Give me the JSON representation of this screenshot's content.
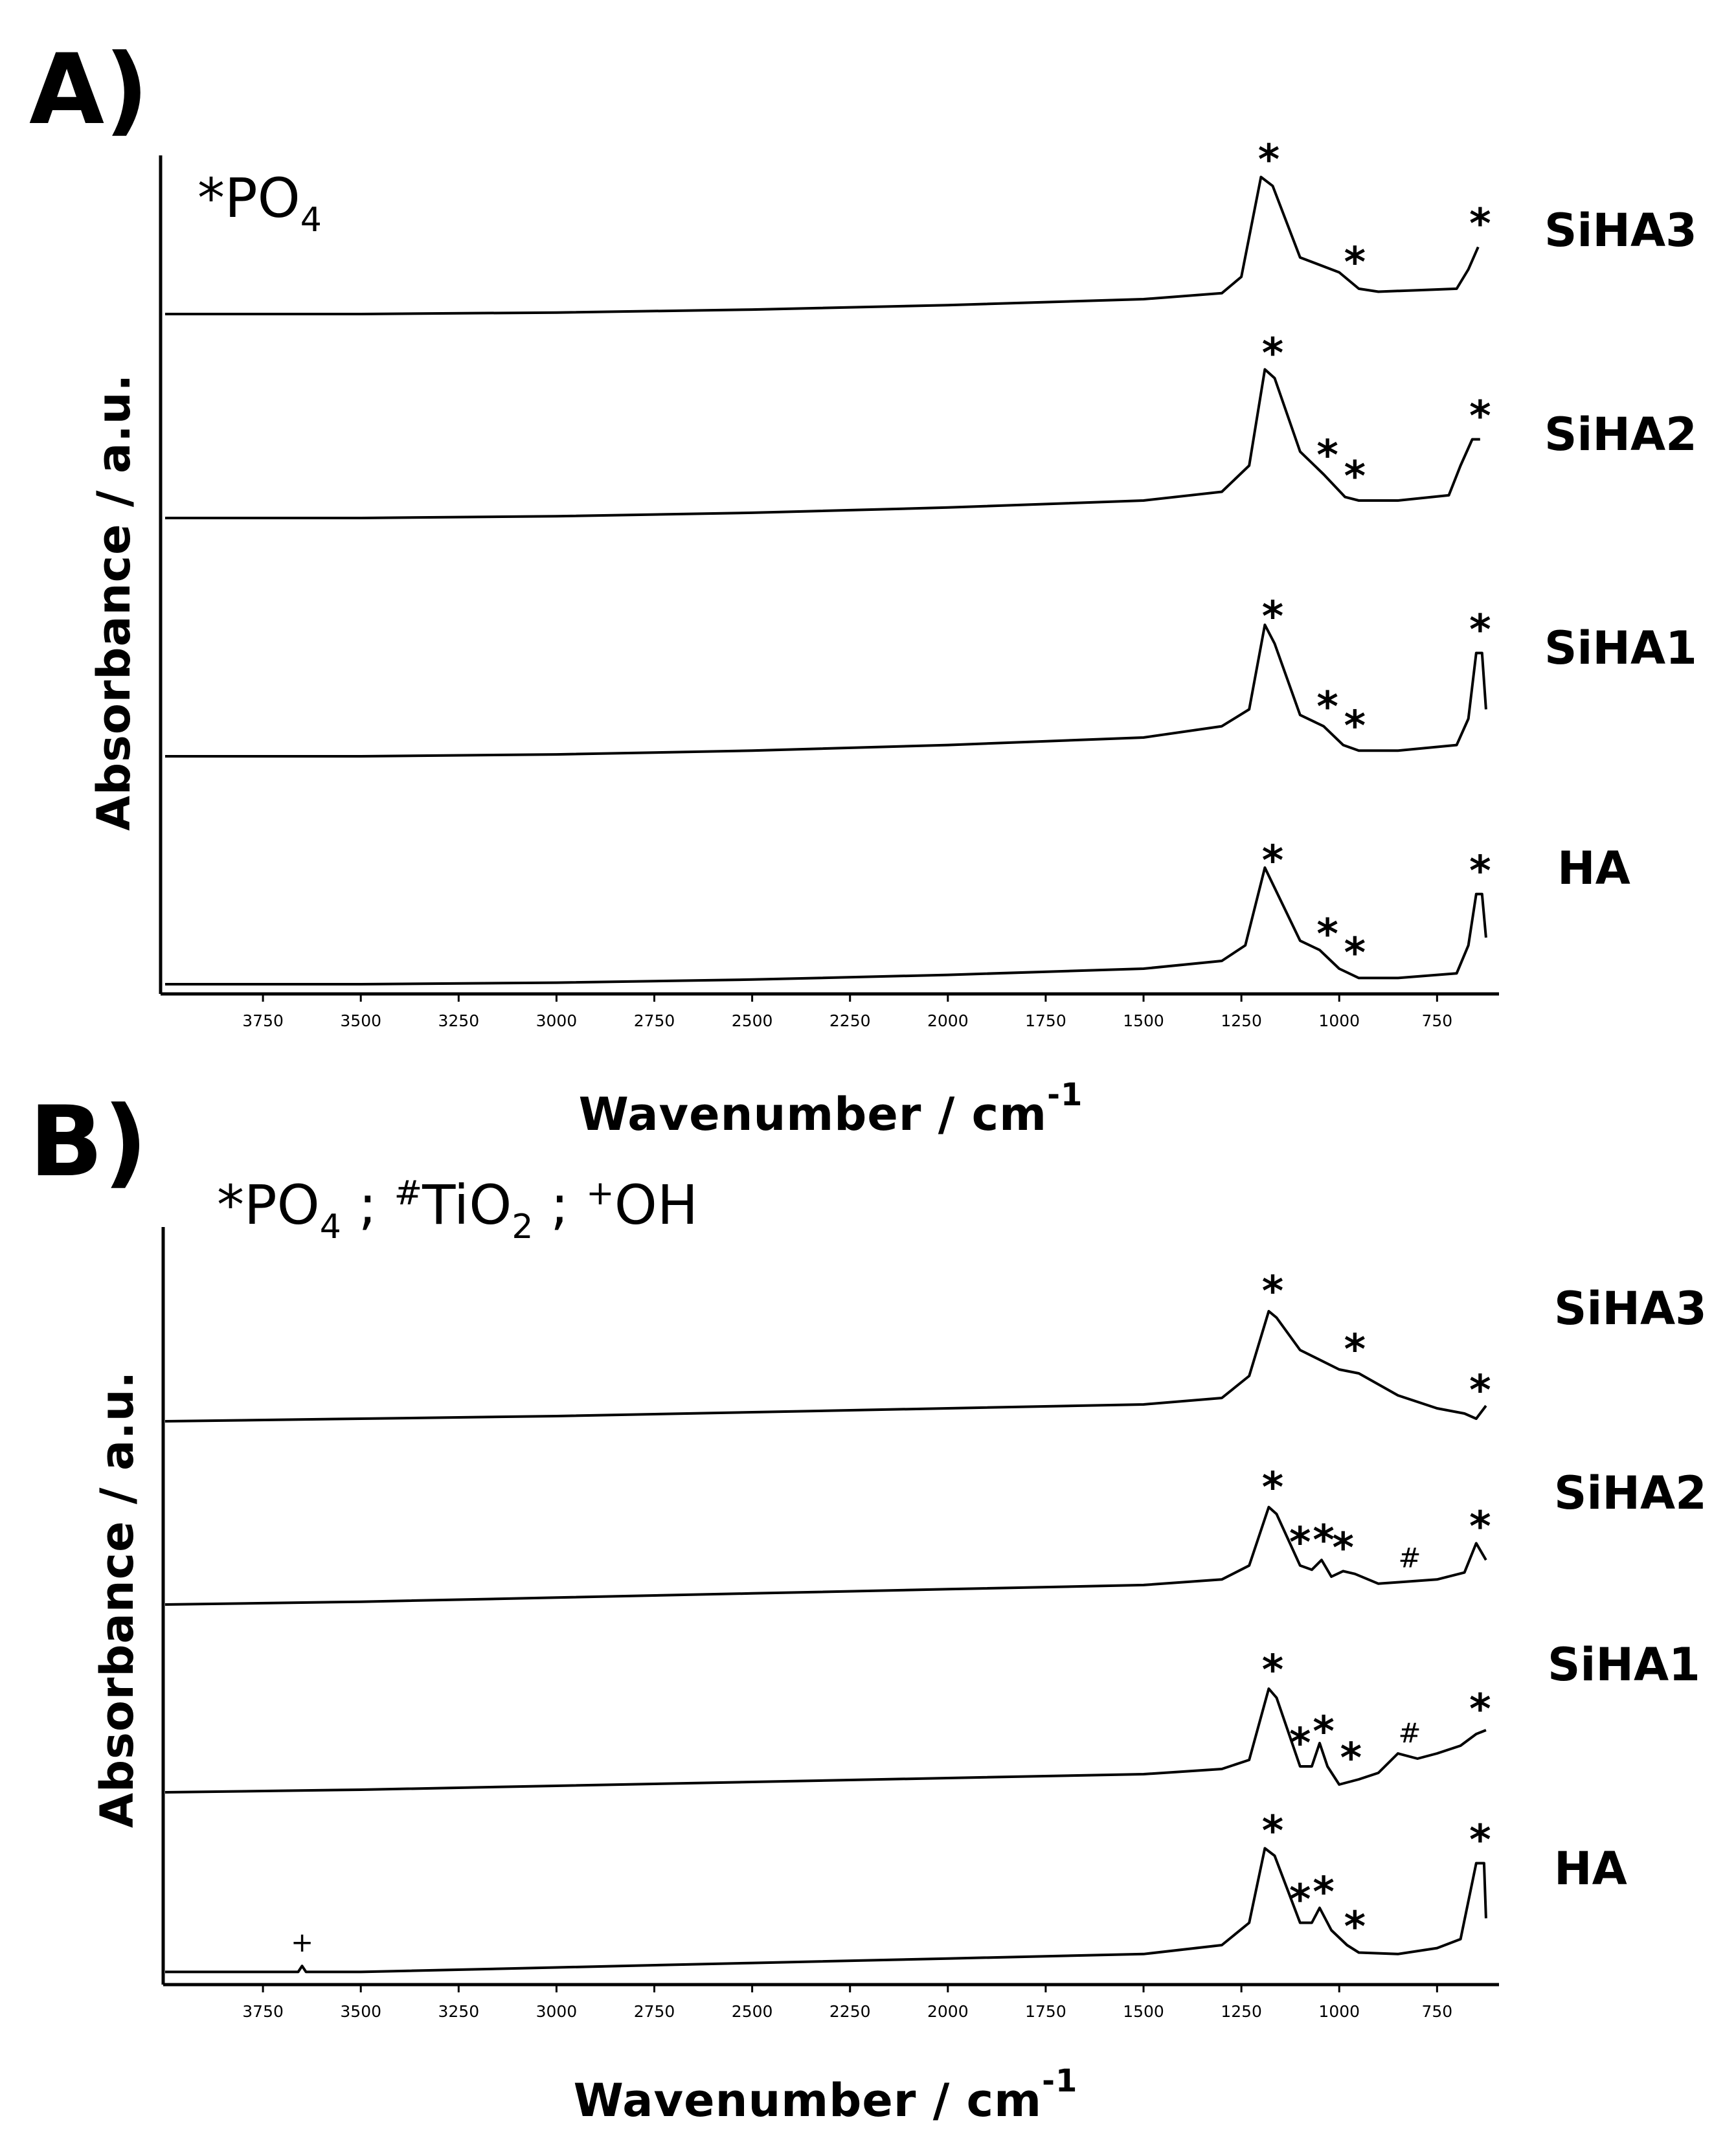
{
  "chart_data": [
    {
      "panel": "A)",
      "type": "line",
      "legend": {
        "prefix": "*",
        "species": "PO",
        "sub": "4"
      },
      "xlabel": "Wavenumber / cm",
      "xlabel_sup": "-1",
      "ylabel": "Absorbance / a.u.",
      "xlim": [
        4000,
        600
      ],
      "x_ticks": [
        3750,
        3500,
        3250,
        3000,
        2750,
        2500,
        2250,
        2000,
        1750,
        1500,
        1250,
        1000,
        750
      ],
      "series": [
        {
          "name": "SiHA3",
          "points": [
            [
              4000,
              0.0
            ],
            [
              3500,
              0.0
            ],
            [
              3000,
              0.01
            ],
            [
              2500,
              0.03
            ],
            [
              2000,
              0.06
            ],
            [
              1500,
              0.1
            ],
            [
              1300,
              0.14
            ],
            [
              1250,
              0.25
            ],
            [
              1200,
              0.92
            ],
            [
              1170,
              0.86
            ],
            [
              1100,
              0.38
            ],
            [
              1000,
              0.28
            ],
            [
              950,
              0.17
            ],
            [
              900,
              0.15
            ],
            [
              800,
              0.16
            ],
            [
              700,
              0.17
            ],
            [
              670,
              0.3
            ],
            [
              645,
              0.45
            ]
          ],
          "markers": [
            1180,
            960,
            640
          ]
        },
        {
          "name": "SiHA2",
          "points": [
            [
              4000,
              0.0
            ],
            [
              3500,
              0.0
            ],
            [
              3000,
              0.01
            ],
            [
              2500,
              0.03
            ],
            [
              2000,
              0.06
            ],
            [
              1500,
              0.1
            ],
            [
              1300,
              0.15
            ],
            [
              1230,
              0.3
            ],
            [
              1190,
              0.85
            ],
            [
              1165,
              0.8
            ],
            [
              1100,
              0.38
            ],
            [
              1040,
              0.25
            ],
            [
              985,
              0.12
            ],
            [
              950,
              0.1
            ],
            [
              850,
              0.1
            ],
            [
              720,
              0.13
            ],
            [
              690,
              0.3
            ],
            [
              660,
              0.45
            ],
            [
              640,
              0.45
            ]
          ],
          "markers": [
            1170,
            1030,
            960,
            640
          ]
        },
        {
          "name": "SiHA1",
          "points": [
            [
              4000,
              0.0
            ],
            [
              3500,
              0.0
            ],
            [
              3000,
              0.01
            ],
            [
              2500,
              0.03
            ],
            [
              2000,
              0.06
            ],
            [
              1500,
              0.1
            ],
            [
              1300,
              0.16
            ],
            [
              1230,
              0.25
            ],
            [
              1190,
              0.7
            ],
            [
              1165,
              0.6
            ],
            [
              1100,
              0.22
            ],
            [
              1040,
              0.16
            ],
            [
              990,
              0.06
            ],
            [
              950,
              0.03
            ],
            [
              850,
              0.03
            ],
            [
              700,
              0.06
            ],
            [
              670,
              0.2
            ],
            [
              650,
              0.55
            ],
            [
              635,
              0.55
            ],
            [
              625,
              0.25
            ]
          ],
          "markers": [
            1170,
            1030,
            960,
            640
          ]
        },
        {
          "name": "HA",
          "points": [
            [
              4000,
              0.0
            ],
            [
              3500,
              0.0
            ],
            [
              3000,
              0.01
            ],
            [
              2500,
              0.03
            ],
            [
              2000,
              0.06
            ],
            [
              1500,
              0.1
            ],
            [
              1300,
              0.15
            ],
            [
              1240,
              0.25
            ],
            [
              1190,
              0.75
            ],
            [
              1165,
              0.62
            ],
            [
              1100,
              0.28
            ],
            [
              1050,
              0.22
            ],
            [
              1000,
              0.1
            ],
            [
              950,
              0.04
            ],
            [
              850,
              0.04
            ],
            [
              700,
              0.07
            ],
            [
              670,
              0.25
            ],
            [
              650,
              0.58
            ],
            [
              635,
              0.58
            ],
            [
              625,
              0.3
            ]
          ],
          "markers": [
            1170,
            1030,
            960,
            640
          ]
        }
      ]
    },
    {
      "panel": "B)",
      "type": "line",
      "legend": {
        "items": [
          {
            "prefix": "*",
            "species": "PO",
            "sub": "4"
          },
          {
            "prefix": "#",
            "species": "TiO",
            "sub": "2"
          },
          {
            "prefix": "+",
            "species": "OH",
            "sub": ""
          }
        ],
        "separator": " ; "
      },
      "xlabel": "Wavenumber / cm",
      "xlabel_sup": "-1",
      "ylabel": "Absorbance / a.u.",
      "xlim": [
        4000,
        600
      ],
      "x_ticks": [
        3750,
        3500,
        3250,
        3000,
        2750,
        2500,
        2250,
        2000,
        1750,
        1500,
        1250,
        1000,
        750
      ],
      "series": [
        {
          "name": "SiHA3",
          "points": [
            [
              4000,
              0.0
            ],
            [
              3500,
              0.02
            ],
            [
              3000,
              0.04
            ],
            [
              2500,
              0.07
            ],
            [
              2000,
              0.1
            ],
            [
              1500,
              0.13
            ],
            [
              1300,
              0.18
            ],
            [
              1230,
              0.35
            ],
            [
              1180,
              0.85
            ],
            [
              1160,
              0.8
            ],
            [
              1100,
              0.55
            ],
            [
              1000,
              0.4
            ],
            [
              950,
              0.37
            ],
            [
              850,
              0.2
            ],
            [
              750,
              0.1
            ],
            [
              680,
              0.06
            ],
            [
              650,
              0.02
            ],
            [
              625,
              0.12
            ]
          ],
          "markers": [
            1170,
            960,
            640
          ]
        },
        {
          "name": "SiHA2",
          "points": [
            [
              4000,
              0.0
            ],
            [
              3500,
              0.02
            ],
            [
              3000,
              0.05
            ],
            [
              2500,
              0.08
            ],
            [
              2000,
              0.11
            ],
            [
              1500,
              0.14
            ],
            [
              1300,
              0.18
            ],
            [
              1230,
              0.28
            ],
            [
              1180,
              0.7
            ],
            [
              1160,
              0.65
            ],
            [
              1100,
              0.28
            ],
            [
              1070,
              0.25
            ],
            [
              1045,
              0.32
            ],
            [
              1020,
              0.2
            ],
            [
              990,
              0.24
            ],
            [
              960,
              0.22
            ],
            [
              900,
              0.15
            ],
            [
              850,
              0.16
            ],
            [
              750,
              0.18
            ],
            [
              680,
              0.23
            ],
            [
              650,
              0.44
            ],
            [
              625,
              0.32
            ]
          ],
          "markers": [
            1170,
            1100,
            1040,
            990,
            640
          ],
          "hash_markers": [
            820
          ]
        },
        {
          "name": "SiHA1",
          "points": [
            [
              4000,
              0.0
            ],
            [
              3500,
              0.02
            ],
            [
              3000,
              0.05
            ],
            [
              2500,
              0.08
            ],
            [
              2000,
              0.11
            ],
            [
              1500,
              0.14
            ],
            [
              1300,
              0.18
            ],
            [
              1230,
              0.25
            ],
            [
              1180,
              0.8
            ],
            [
              1160,
              0.73
            ],
            [
              1100,
              0.2
            ],
            [
              1070,
              0.2
            ],
            [
              1050,
              0.38
            ],
            [
              1030,
              0.2
            ],
            [
              1000,
              0.06
            ],
            [
              950,
              0.1
            ],
            [
              900,
              0.15
            ],
            [
              850,
              0.3
            ],
            [
              800,
              0.26
            ],
            [
              750,
              0.3
            ],
            [
              690,
              0.36
            ],
            [
              650,
              0.45
            ],
            [
              625,
              0.48
            ]
          ],
          "markers": [
            1170,
            1100,
            1040,
            970,
            640
          ],
          "hash_markers": [
            820
          ]
        },
        {
          "name": "HA",
          "points": [
            [
              4000,
              0.02
            ],
            [
              3660,
              0.02
            ],
            [
              3650,
              0.06
            ],
            [
              3640,
              0.02
            ],
            [
              3500,
              0.02
            ],
            [
              3000,
              0.05
            ],
            [
              2500,
              0.08
            ],
            [
              2000,
              0.11
            ],
            [
              1500,
              0.14
            ],
            [
              1300,
              0.2
            ],
            [
              1230,
              0.35
            ],
            [
              1190,
              0.85
            ],
            [
              1165,
              0.8
            ],
            [
              1100,
              0.35
            ],
            [
              1070,
              0.35
            ],
            [
              1050,
              0.45
            ],
            [
              1020,
              0.3
            ],
            [
              980,
              0.2
            ],
            [
              950,
              0.15
            ],
            [
              850,
              0.14
            ],
            [
              750,
              0.18
            ],
            [
              690,
              0.24
            ],
            [
              650,
              0.75
            ],
            [
              630,
              0.75
            ],
            [
              625,
              0.38
            ]
          ],
          "markers": [
            1170,
            1100,
            1040,
            960,
            640
          ],
          "plus_markers": [
            3650
          ]
        }
      ]
    }
  ]
}
